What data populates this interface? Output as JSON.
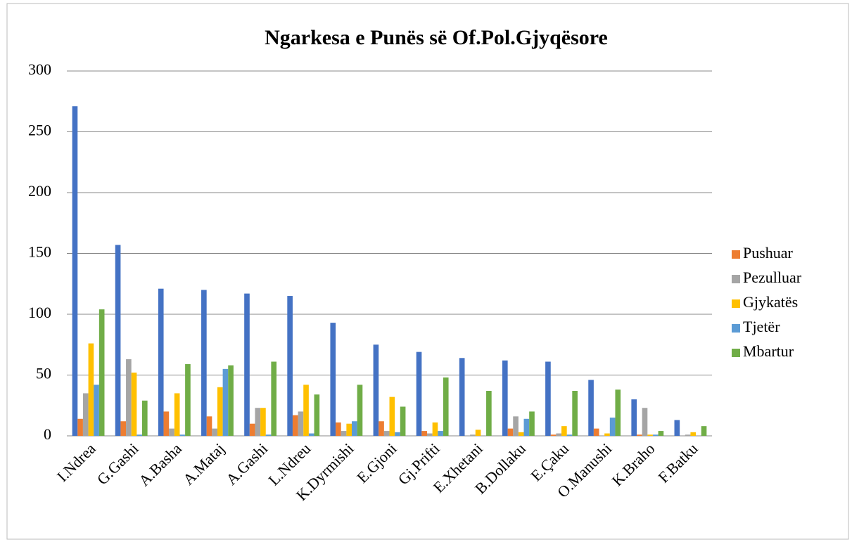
{
  "chart_data": {
    "type": "bar",
    "title": "Ngarkesa e Punës së Of.Pol.Gjyqësore",
    "categories": [
      "I.Ndrea",
      "G.Gashi",
      "A.Basha",
      "A.Mataj",
      "A.Gashi",
      "L.Ndreu",
      "K.Dyrmishi",
      "E.Gjoni",
      "Gj.Prifti",
      "E.Xhetani",
      "B.Dollaku",
      "E.Çaku",
      "O.Manushi",
      "K.Braho",
      "F.Batku"
    ],
    "series": [
      {
        "color": "#4472c4",
        "values": [
          271,
          157,
          121,
          120,
          117,
          115,
          93,
          75,
          69,
          64,
          62,
          61,
          46,
          30,
          13
        ]
      },
      {
        "name": "Pushuar",
        "color": "#ed7d31",
        "values": [
          14,
          12,
          20,
          16,
          10,
          17,
          11,
          12,
          4,
          0,
          6,
          1,
          6,
          1,
          0
        ]
      },
      {
        "name": "Pezulluar",
        "color": "#a5a5a5",
        "values": [
          35,
          63,
          6,
          6,
          23,
          20,
          4,
          4,
          2,
          1,
          16,
          2,
          0,
          23,
          1
        ]
      },
      {
        "name": "Gjykatës",
        "color": "#ffc000",
        "values": [
          76,
          52,
          35,
          40,
          23,
          42,
          10,
          32,
          11,
          5,
          3,
          8,
          2,
          1,
          3
        ]
      },
      {
        "name": "Tjetër",
        "color": "#5b9bd5",
        "values": [
          42,
          1,
          1,
          55,
          1,
          2,
          12,
          3,
          4,
          0,
          14,
          1,
          15,
          1,
          0
        ]
      },
      {
        "name": "Mbartur",
        "color": "#70ad47",
        "values": [
          104,
          29,
          59,
          58,
          61,
          34,
          42,
          24,
          48,
          37,
          20,
          37,
          38,
          4,
          8
        ]
      }
    ],
    "ylim": [
      0,
      300
    ],
    "yticks": [
      0,
      50,
      100,
      150,
      200,
      250,
      300
    ],
    "grid": true,
    "legend": "right"
  }
}
